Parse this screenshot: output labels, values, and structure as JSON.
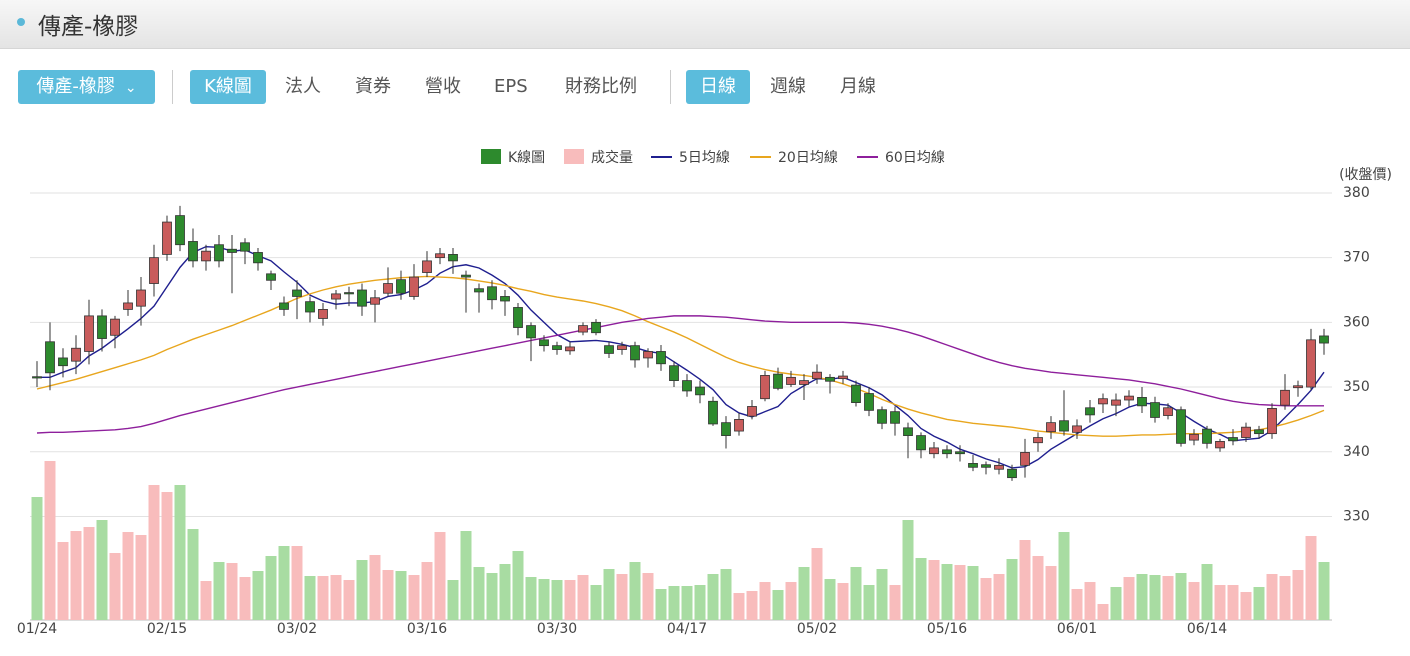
{
  "ui": {
    "header": {
      "title": "傳產-橡膠"
    },
    "toolbar": {
      "dropdown": "傳產-橡膠",
      "tabs": [
        "K線圖",
        "法人",
        "資券",
        "營收",
        "EPS",
        "財務比例"
      ],
      "periods": [
        "日線",
        "週線",
        "月線"
      ]
    }
  },
  "chart_data": {
    "type": "candlestick",
    "y_axis_title": "(收盤價)",
    "categories": [
      "01/24",
      null,
      null,
      null,
      null,
      null,
      null,
      null,
      null,
      null,
      "02/15",
      null,
      null,
      null,
      null,
      null,
      null,
      null,
      null,
      null,
      "03/02",
      null,
      null,
      null,
      null,
      null,
      null,
      null,
      null,
      null,
      "03/16",
      null,
      null,
      null,
      null,
      null,
      null,
      null,
      null,
      null,
      "03/30",
      null,
      null,
      null,
      null,
      null,
      null,
      null,
      null,
      null,
      "04/17",
      null,
      null,
      null,
      null,
      null,
      null,
      null,
      null,
      null,
      "05/02",
      null,
      null,
      null,
      null,
      null,
      null,
      null,
      null,
      null,
      "05/16",
      null,
      null,
      null,
      null,
      null,
      null,
      null,
      null,
      null,
      "06/01",
      null,
      null,
      null,
      null,
      null,
      null,
      null,
      null,
      null,
      "06/14",
      null,
      null,
      null,
      null,
      null,
      null,
      null,
      null,
      null
    ],
    "ylim": [
      314,
      382
    ],
    "yticks": [
      330,
      340,
      350,
      360,
      370,
      380
    ],
    "grid": true,
    "candles": {
      "name": "K線圖",
      "color": "#2d8a2d",
      "up_color": "#c95c5c",
      "down_color": "#2d8a2d",
      "open": [
        351.6,
        357,
        354.5,
        354,
        355.5,
        361,
        358,
        362,
        362.5,
        366,
        370.5,
        376.5,
        372.5,
        369.5,
        372,
        371.3,
        372.3,
        370.8,
        367.5,
        363,
        365,
        363.2,
        360.6,
        363.6,
        364.6,
        365,
        362.8,
        364.5,
        366.6,
        364,
        367.7,
        370,
        370.5,
        367.3,
        365.2,
        365.5,
        364,
        362.3,
        359.5,
        357.3,
        356.4,
        355.6,
        358.5,
        360,
        356.4,
        355.8,
        356.4,
        354.5,
        355.5,
        353.3,
        351,
        350,
        347.8,
        344.5,
        343.2,
        345.5,
        348.2,
        352,
        350.4,
        350.4,
        351.3,
        351.5,
        351.3,
        350.3,
        349,
        346.5,
        346.2,
        343.7,
        342.5,
        339.7,
        340.3,
        340,
        338.2,
        338,
        337.3,
        337.3,
        337.9,
        341.4,
        343.1,
        344.8,
        343,
        346.8,
        347.4,
        347.2,
        348,
        348.4,
        347.6,
        345.6,
        346.5,
        341.8,
        343.5,
        340.6,
        342.2,
        342.2,
        343.4,
        342.8,
        347.2,
        349.9,
        350,
        357.9
      ],
      "high": [
        354,
        360,
        356,
        358,
        363.5,
        362,
        361,
        365,
        367,
        372,
        376.5,
        378,
        374.5,
        372,
        373.5,
        373.5,
        373,
        371.5,
        368,
        364,
        366.5,
        364,
        363,
        365,
        365.5,
        366,
        365,
        368.5,
        368,
        369,
        371,
        371.5,
        371.5,
        368,
        366,
        366.5,
        365,
        363,
        360,
        358,
        357,
        357,
        360,
        360.5,
        357,
        357,
        357,
        356,
        356.5,
        354,
        352,
        351,
        348.5,
        345.5,
        346,
        348,
        352.5,
        353,
        352.5,
        352,
        353.5,
        352,
        352.5,
        351,
        350,
        347,
        347,
        344.5,
        343,
        341.5,
        341,
        341,
        339.5,
        338.5,
        339,
        338,
        342,
        343,
        345.5,
        349.5,
        345,
        348,
        349,
        349,
        349.5,
        350,
        348.5,
        347.5,
        347,
        343.5,
        344,
        342,
        343.5,
        344.5,
        344,
        347.5,
        352,
        351,
        359,
        359
      ],
      "low": [
        350,
        349.5,
        351.5,
        352,
        353.5,
        355.5,
        356,
        361,
        359.5,
        364,
        369.5,
        371,
        368.5,
        368,
        368.5,
        364.5,
        369,
        368,
        365,
        361,
        360.5,
        360,
        359.5,
        362,
        362.5,
        361,
        360,
        364,
        363.5,
        363.5,
        367,
        369,
        367.5,
        361.5,
        361.5,
        362,
        361,
        358,
        354,
        355.5,
        355,
        355,
        358,
        358,
        354.5,
        355,
        353,
        353,
        352.5,
        350,
        348.5,
        347.5,
        344,
        340.5,
        342.5,
        345,
        347.8,
        349.5,
        350,
        348,
        350.5,
        349,
        350.5,
        347,
        345.5,
        343.5,
        342.5,
        339,
        339,
        339,
        339,
        338.5,
        337,
        336.5,
        336.5,
        335.5,
        336,
        340,
        342,
        342.5,
        342,
        344.5,
        346,
        345.5,
        347,
        346,
        344.5,
        345,
        340.8,
        341,
        340.5,
        340,
        341,
        341.5,
        342,
        342,
        346.5,
        348.5,
        349.5,
        355
      ],
      "close": [
        351.4,
        352.2,
        353.3,
        356,
        361,
        357.5,
        360.5,
        363,
        365,
        370,
        375.5,
        372,
        369.5,
        371,
        369.5,
        370.8,
        371,
        369.2,
        366.5,
        362,
        364,
        361.6,
        362,
        364.4,
        364.4,
        362.5,
        363.8,
        366,
        364.5,
        367,
        369.5,
        370.6,
        369.5,
        367,
        364.7,
        363.5,
        363.3,
        359.2,
        357.6,
        356.4,
        355.8,
        356.2,
        359.5,
        358.4,
        355.2,
        356.4,
        354.2,
        355.5,
        353.6,
        351,
        349.4,
        348.8,
        344.3,
        342.5,
        345,
        347,
        351.8,
        349.8,
        351.5,
        351,
        352.3,
        350.9,
        351.7,
        347.6,
        346.4,
        344.4,
        344.4,
        342.5,
        340.3,
        340.6,
        339.7,
        339.7,
        337.6,
        337.6,
        337.9,
        336,
        339.9,
        342.2,
        344.5,
        343.2,
        344,
        345.7,
        348.2,
        348,
        348.6,
        347.1,
        345.3,
        346.8,
        341.3,
        342.7,
        341.3,
        341.6,
        341.7,
        343.8,
        342.8,
        346.7,
        349.5,
        350.2,
        357.3,
        356.8
      ]
    },
    "volume": {
      "name": "成交量",
      "color": "#f8bcbc",
      "up_color": "#f8bcbc",
      "down_color": "#a8dca2",
      "volume_lim": [
        0,
        440
      ],
      "values": [
        123,
        159,
        78,
        89,
        93,
        100,
        67,
        88,
        85,
        135,
        128,
        135,
        91,
        39,
        58,
        57,
        43,
        49,
        64,
        74,
        74,
        44,
        44,
        45,
        40,
        60,
        65,
        50,
        49,
        45,
        58,
        88,
        40,
        89,
        53,
        47,
        56,
        69,
        43,
        41,
        40,
        40,
        45,
        35,
        51,
        46,
        58,
        47,
        31,
        34,
        34,
        35,
        46,
        51,
        27,
        29,
        38,
        30,
        38,
        53,
        72,
        41,
        37,
        53,
        35,
        51,
        35,
        100,
        62,
        60,
        56,
        55,
        54,
        42,
        46,
        61,
        80,
        64,
        54,
        88,
        31,
        38,
        16,
        33,
        43,
        46,
        45,
        44,
        47,
        38,
        56,
        35,
        35,
        28,
        33,
        46,
        44,
        50,
        84,
        58
      ]
    },
    "series": [
      {
        "name": "5日均線",
        "color": "#1f1f8f",
        "values": [
          351.5,
          351.5,
          352.3,
          353,
          354.8,
          356,
          357.5,
          359,
          360.6,
          362.5,
          365.5,
          368.5,
          370.8,
          371.7,
          371.6,
          371,
          371.2,
          370.3,
          369.5,
          367.8,
          366.2,
          364.2,
          363.3,
          362.8,
          363,
          363,
          363.2,
          364,
          364.3,
          365,
          366,
          367.6,
          368.6,
          368.9,
          368.4,
          367.3,
          366,
          364.2,
          361.9,
          360,
          358.1,
          357,
          357.1,
          357.2,
          357,
          356.6,
          356.1,
          355.5,
          355.2,
          353.9,
          352.6,
          351.2,
          349.6,
          347.3,
          346,
          345.4,
          346.2,
          347,
          349,
          350.2,
          351.3,
          351.2,
          351.5,
          350.7,
          349.9,
          348.8,
          347.2,
          345.6,
          343.6,
          342.4,
          341.5,
          340.4,
          339.7,
          338.9,
          338.3,
          337.5,
          337.7,
          338.8,
          340.4,
          341.6,
          342.8,
          344,
          345.1,
          345.9,
          346.9,
          347.5,
          347.4,
          347.2,
          346,
          344.7,
          343.5,
          342.7,
          341.7,
          341.9,
          342.1,
          343.3,
          345.3,
          347.3,
          349.5,
          352.3
        ]
      },
      {
        "name": "20日均線",
        "color": "#e8a61e",
        "values": [
          349.7,
          350.2,
          350.7,
          351.2,
          351.8,
          352.4,
          353,
          353.6,
          354.2,
          354.9,
          355.8,
          356.6,
          357.4,
          358.1,
          358.8,
          359.5,
          360.3,
          361.1,
          361.9,
          362.8,
          363.7,
          364.4,
          365,
          365.5,
          365.9,
          366.2,
          366.5,
          366.7,
          366.9,
          367,
          367.1,
          367,
          366.9,
          366.7,
          366.4,
          366.1,
          365.7,
          365.2,
          364.8,
          364.3,
          363.9,
          363.6,
          363.3,
          362.9,
          362.4,
          361.8,
          361,
          360.1,
          359.3,
          358.5,
          357.6,
          356.6,
          355.6,
          354.6,
          353.8,
          353.2,
          352.7,
          352.3,
          352,
          351.8,
          351.5,
          351.1,
          350.5,
          349.8,
          349,
          348.1,
          347.3,
          346.6,
          346,
          345.5,
          345,
          344.7,
          344.4,
          344.2,
          344,
          343.8,
          343.5,
          343.2,
          343,
          342.8,
          342.6,
          342.5,
          342.4,
          342.4,
          342.5,
          342.6,
          342.6,
          342.7,
          342.8,
          342.8,
          342.8,
          342.9,
          343,
          343.2,
          343.4,
          343.8,
          344.3,
          344.9,
          345.6,
          346.4
        ]
      },
      {
        "name": "60日均線",
        "color": "#8e1f9c",
        "values": [
          342.9,
          343,
          343,
          343.1,
          343.2,
          343.3,
          343.4,
          343.6,
          343.9,
          344.4,
          345,
          345.6,
          346.1,
          346.6,
          347.1,
          347.6,
          348.1,
          348.6,
          349.1,
          349.6,
          350,
          350.4,
          350.8,
          351.2,
          351.6,
          352,
          352.4,
          352.8,
          353.2,
          353.6,
          354,
          354.4,
          354.8,
          355.2,
          355.6,
          356,
          356.4,
          356.8,
          357.2,
          357.6,
          358,
          358.4,
          358.8,
          359.2,
          359.6,
          360,
          360.3,
          360.6,
          360.8,
          361,
          361,
          361,
          360.9,
          360.8,
          360.6,
          360.4,
          360.2,
          360.1,
          360,
          360,
          360,
          360,
          360,
          359.9,
          359.7,
          359.4,
          359,
          358.5,
          357.9,
          357.2,
          356.5,
          355.8,
          355.1,
          354.4,
          353.8,
          353.3,
          352.9,
          352.6,
          352.3,
          352.1,
          351.9,
          351.7,
          351.5,
          351.3,
          351.1,
          350.8,
          350.5,
          350.1,
          349.7,
          349.2,
          348.7,
          348.2,
          347.8,
          347.5,
          347.3,
          347.2,
          347.1,
          347.1,
          347.1,
          347.1
        ]
      }
    ]
  }
}
